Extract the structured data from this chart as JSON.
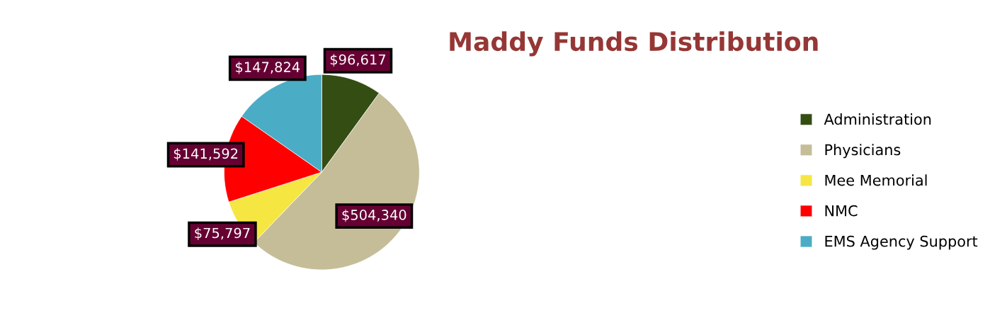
{
  "chart_data": {
    "type": "pie",
    "title": "Maddy Funds Distribution",
    "categories": [
      "Administration",
      "Physicians",
      "Mee Memorial",
      "NMC",
      "EMS Agency Support"
    ],
    "values": [
      96617,
      504340,
      75797,
      141592,
      147824
    ],
    "colors": [
      "#344d13",
      "#c4bd97",
      "#f5e642",
      "#ff0000",
      "#4bacc6"
    ],
    "value_labels": [
      "$96,617",
      "$504,340",
      "$75,797",
      "$141,592",
      "$147,824"
    ],
    "legend": "right"
  }
}
